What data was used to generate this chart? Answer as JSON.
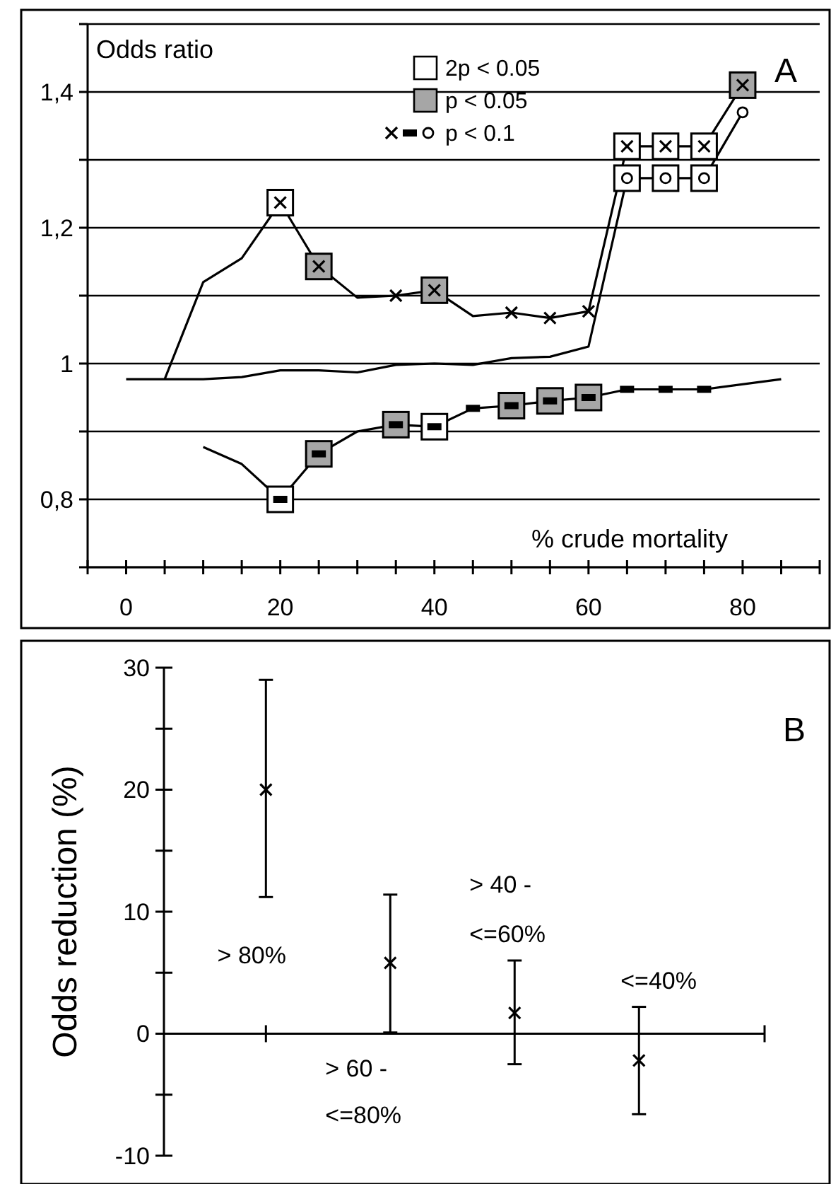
{
  "chart_data": [
    {
      "type": "line",
      "ylabel": "Odds ratio",
      "xlabel": "% crude mortality",
      "annotations": [
        "A"
      ],
      "legend": "top",
      "grid": "y",
      "xlim": [
        -5,
        90
      ],
      "xticks": [
        {
          "value": -5,
          "label": null
        },
        0,
        {
          "value": 5,
          "label": null
        },
        {
          "value": 10,
          "label": null
        },
        {
          "value": 15,
          "label": null
        },
        20,
        {
          "value": 25,
          "label": null
        },
        {
          "value": 30,
          "label": null
        },
        {
          "value": 35,
          "label": null
        },
        40,
        {
          "value": 45,
          "label": null
        },
        {
          "value": 50,
          "label": null
        },
        {
          "value": 55,
          "label": null
        },
        60,
        {
          "value": 65,
          "label": null
        },
        {
          "value": 70,
          "label": null
        },
        {
          "value": 75,
          "label": null
        },
        80,
        {
          "value": 85,
          "label": null
        },
        {
          "value": 90,
          "label": null
        }
      ],
      "ylim": [
        0.7,
        1.5
      ],
      "yticks": [
        {
          "value": 0.7,
          "label": null
        },
        {
          "value": 0.8,
          "label": "0,8"
        },
        {
          "value": 0.9,
          "label": null
        },
        1,
        {
          "value": 1.1,
          "label": null
        },
        {
          "value": 1.2,
          "label": "1,2"
        },
        {
          "value": 1.3,
          "label": null
        },
        {
          "value": 1.4,
          "label": "1,4"
        },
        {
          "value": 1.5,
          "label": null
        }
      ],
      "series": [
        {
          "marker": "none",
          "color": "#000000",
          "x": [
            5,
            10,
            15,
            20,
            25,
            30,
            35,
            40,
            45,
            50,
            55,
            60,
            65,
            70,
            75,
            80
          ],
          "values": [
            0.977,
            1.12,
            1.155,
            1.237,
            1.143,
            1.097,
            1.1,
            1.108,
            1.07,
            1.075,
            1.067,
            1.077,
            1.32,
            1.32,
            1.32,
            1.41
          ]
        },
        {
          "marker": "none",
          "color": "#000000",
          "x": [
            0,
            5,
            10,
            15,
            20,
            25,
            30,
            35,
            40,
            45,
            50,
            55,
            60,
            65,
            70,
            75,
            80
          ],
          "values": [
            0.977,
            0.977,
            0.977,
            0.98,
            0.99,
            0.99,
            0.987,
            0.998,
            1.0,
            0.998,
            1.008,
            1.01,
            1.025,
            1.273,
            1.273,
            1.273,
            1.37
          ]
        },
        {
          "marker": "none",
          "color": "#000000",
          "x": [
            10,
            15,
            20,
            25,
            30,
            35,
            40,
            45,
            50,
            55,
            60,
            65,
            70,
            75,
            85
          ],
          "values": [
            0.877,
            0.852,
            0.8,
            0.867,
            0.9,
            0.91,
            0.907,
            0.934,
            0.938,
            0.945,
            0.95,
            0.962,
            0.962,
            0.962,
            0.977
          ]
        },
        {
          "type": "scatter",
          "name": "2p < 0.05",
          "marker": "square",
          "color": "#ffffff",
          "x": [
            20,
            65,
            70,
            75,
            65,
            70,
            75,
            20,
            40
          ],
          "values": [
            1.237,
            1.32,
            1.32,
            1.32,
            1.273,
            1.273,
            1.273,
            0.8,
            0.907
          ]
        },
        {
          "type": "scatter",
          "name": "p < 0.05",
          "marker": "square",
          "color": "#a6a6a6",
          "x": [
            25,
            40,
            80,
            25,
            35,
            50,
            55,
            60
          ],
          "values": [
            1.143,
            1.108,
            1.41,
            0.867,
            0.91,
            0.938,
            0.945,
            0.95
          ]
        },
        {
          "type": "scatter",
          "name": "p < 0.1",
          "marker": "cross",
          "color": "#000000",
          "x": [
            20,
            25,
            35,
            40,
            50,
            55,
            60,
            65,
            70,
            75,
            80
          ],
          "values": [
            1.237,
            1.143,
            1.1,
            1.108,
            1.075,
            1.067,
            1.077,
            1.32,
            1.32,
            1.32,
            1.41
          ]
        },
        {
          "type": "scatter",
          "marker": "square",
          "color": "#000000",
          "x": [
            20,
            25,
            35,
            40,
            45,
            50,
            55,
            60,
            65,
            70,
            75
          ],
          "values": [
            0.8,
            0.867,
            0.91,
            0.907,
            0.934,
            0.938,
            0.945,
            0.95,
            0.962,
            0.962,
            0.962
          ]
        },
        {
          "type": "scatter",
          "marker": "circle",
          "color": "#000000",
          "x": [
            65,
            70,
            75,
            80
          ],
          "values": [
            1.273,
            1.273,
            1.273,
            1.37
          ]
        }
      ]
    },
    {
      "type": "scatter",
      "ylabel": "Odds reduction (%)",
      "annotations": [
        "B"
      ],
      "marker": "cross",
      "categories": [
        "> 80%",
        "> 60 - <=80%",
        "> 40 - <=60%",
        "<=40%"
      ],
      "ylim": [
        -10,
        30
      ],
      "yticks": [
        -10,
        {
          "value": -5,
          "label": null
        },
        0,
        {
          "value": 5,
          "label": null
        },
        10,
        {
          "value": 15,
          "label": null
        },
        20,
        {
          "value": 25,
          "label": null
        },
        30
      ],
      "values": [
        20,
        5.8,
        1.7,
        -2.2
      ],
      "errors": [
        [
          11.2,
          29
        ],
        [
          0.1,
          11.4
        ],
        [
          -2.5,
          6
        ],
        [
          -6.6,
          2.2
        ]
      ]
    }
  ]
}
